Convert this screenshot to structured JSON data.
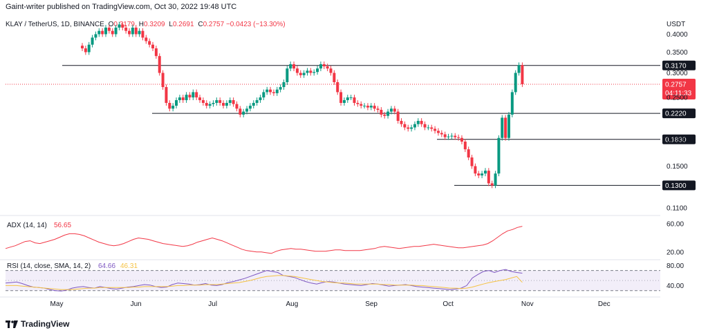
{
  "header": {
    "text": "Gaint-writer published on TradingView.com, Oct 30, 2022 19:48 UTC"
  },
  "legend": {
    "symbol": "KLAY / TetherUS, 1D, BINANCE",
    "open_label": "O",
    "open": "0.3179",
    "high_label": "H",
    "high": "0.3209",
    "low_label": "L",
    "low": "0.2691",
    "close_label": "C",
    "close": "0.2757",
    "change": "−0.0423 (−13.30%)"
  },
  "axis_currency": "USDT",
  "price_tag": {
    "value": "0.2757",
    "countdown": "04:11:33",
    "color": "#f23645"
  },
  "footer": {
    "brand": "TradingView"
  },
  "colors": {
    "up": "#089981",
    "down": "#f23645",
    "adx": "#f23645",
    "rsi": "#7e57c2",
    "rsi_ma": "#f5c242"
  },
  "chart_data": [
    {
      "type": "candlestick",
      "title": "KLAY / TetherUS, 1D, BINANCE",
      "y_scale": "log",
      "ylim": [
        0.105,
        0.42
      ],
      "x_ticks": [
        "May",
        "Jun",
        "Jul",
        "Aug",
        "Sep",
        "Oct",
        "Nov",
        "Dec"
      ],
      "y_ticks": [
        "0.4000",
        "0.3500",
        "0.3000",
        "0.2500",
        "0.1830",
        "0.1500",
        "0.1100"
      ],
      "levels": [
        {
          "value": 0.317,
          "label": "0.3170"
        },
        {
          "value": 0.222,
          "label": "0.2220"
        },
        {
          "value": 0.183,
          "label": "0.1830"
        },
        {
          "value": 0.13,
          "label": "0.1300"
        }
      ],
      "current_price": 0.2757,
      "closes": [
        0.36,
        0.35,
        0.37,
        0.39,
        0.4,
        0.41,
        0.4,
        0.42,
        0.41,
        0.4,
        0.42,
        0.43,
        0.42,
        0.41,
        0.4,
        0.42,
        0.4,
        0.41,
        0.39,
        0.38,
        0.37,
        0.36,
        0.34,
        0.3,
        0.27,
        0.24,
        0.23,
        0.235,
        0.245,
        0.25,
        0.245,
        0.255,
        0.25,
        0.26,
        0.25,
        0.245,
        0.24,
        0.235,
        0.238,
        0.24,
        0.245,
        0.24,
        0.235,
        0.24,
        0.245,
        0.238,
        0.23,
        0.22,
        0.225,
        0.23,
        0.235,
        0.24,
        0.245,
        0.25,
        0.26,
        0.265,
        0.26,
        0.258,
        0.265,
        0.27,
        0.28,
        0.31,
        0.32,
        0.31,
        0.3,
        0.295,
        0.3,
        0.305,
        0.3,
        0.302,
        0.31,
        0.32,
        0.315,
        0.31,
        0.3,
        0.28,
        0.26,
        0.24,
        0.245,
        0.25,
        0.25,
        0.24,
        0.238,
        0.235,
        0.235,
        0.232,
        0.235,
        0.23,
        0.228,
        0.22,
        0.218,
        0.225,
        0.23,
        0.225,
        0.21,
        0.205,
        0.2,
        0.198,
        0.2,
        0.205,
        0.21,
        0.205,
        0.2,
        0.2,
        0.198,
        0.195,
        0.192,
        0.19,
        0.186,
        0.187,
        0.188,
        0.186,
        0.185,
        0.18,
        0.17,
        0.16,
        0.15,
        0.142,
        0.14,
        0.142,
        0.145,
        0.132,
        0.13,
        0.142,
        0.185,
        0.215,
        0.185,
        0.22,
        0.26,
        0.3,
        0.3179,
        0.2757
      ]
    },
    {
      "type": "line",
      "title": "ADX (14, 14)",
      "last_value": "56.65",
      "ylim": [
        10,
        70
      ],
      "y_ticks": [
        "60.00",
        "20.00"
      ],
      "values": [
        25,
        27,
        29,
        32,
        35,
        36,
        33,
        32,
        34,
        36,
        38,
        41,
        44,
        46,
        46,
        45,
        43,
        40,
        37,
        34,
        32,
        30,
        29,
        30,
        32,
        35,
        38,
        40,
        39,
        38,
        36,
        34,
        32,
        31,
        30,
        29,
        28,
        29,
        31,
        34,
        36,
        38,
        40,
        38,
        36,
        33,
        30,
        27,
        24,
        22,
        21,
        20,
        20,
        19,
        18,
        21,
        23,
        24,
        25,
        24,
        24,
        23,
        22,
        21,
        21,
        21,
        22,
        23,
        23,
        22,
        22,
        22,
        22,
        23,
        24,
        25,
        27,
        28,
        27,
        26,
        25,
        26,
        27,
        28,
        28,
        29,
        30,
        31,
        30,
        29,
        28,
        27,
        26,
        26,
        27,
        28,
        29,
        30,
        32,
        36,
        41,
        46,
        50,
        52,
        55,
        56.65
      ]
    },
    {
      "type": "line",
      "title": "RSI (14, close, SMA, 14, 2)",
      "last_value": "64.66",
      "ma_value": "46.31",
      "ylim": [
        20,
        90
      ],
      "bands": [
        30,
        70
      ],
      "y_ticks": [
        "80.00",
        "40.00"
      ],
      "series": [
        {
          "name": "RSI",
          "values": [
            45,
            46,
            47,
            44,
            40,
            37,
            36,
            35,
            32,
            30,
            29,
            31,
            35,
            37,
            38,
            36,
            35,
            38,
            36,
            34,
            33,
            35,
            37,
            38,
            40,
            42,
            41,
            38,
            36,
            37,
            42,
            45,
            44,
            43,
            41,
            42,
            44,
            41,
            40,
            42,
            46,
            48,
            51,
            54,
            58,
            62,
            66,
            70,
            68,
            66,
            60,
            58,
            56,
            52,
            48,
            45,
            43,
            46,
            48,
            47,
            45,
            43,
            42,
            41,
            40,
            42,
            44,
            43,
            41,
            39,
            40,
            41,
            42,
            40,
            38,
            37,
            36,
            35,
            34,
            33,
            32,
            33,
            35,
            40,
            55,
            62,
            68,
            70,
            66,
            70,
            72,
            68,
            66,
            64.66
          ]
        },
        {
          "name": "SMA",
          "values": [
            40,
            40,
            40,
            39,
            38,
            37,
            36,
            35,
            34,
            33,
            32,
            32,
            32,
            33,
            34,
            35,
            35,
            36,
            36,
            36,
            36,
            36,
            36,
            37,
            37,
            38,
            38,
            38,
            38,
            38,
            39,
            40,
            40,
            41,
            41,
            41,
            42,
            42,
            42,
            43,
            44,
            45,
            46,
            48,
            50,
            53,
            56,
            58,
            59,
            60,
            60,
            59,
            58,
            56,
            54,
            52,
            50,
            48,
            47,
            46,
            45,
            45,
            44,
            43,
            43,
            43,
            43,
            43,
            42,
            42,
            41,
            41,
            41,
            41,
            40,
            40,
            39,
            38,
            37,
            36,
            35,
            35,
            34,
            35,
            37,
            40,
            43,
            46,
            48,
            50,
            52,
            55,
            58,
            46.31
          ]
        }
      ]
    }
  ]
}
